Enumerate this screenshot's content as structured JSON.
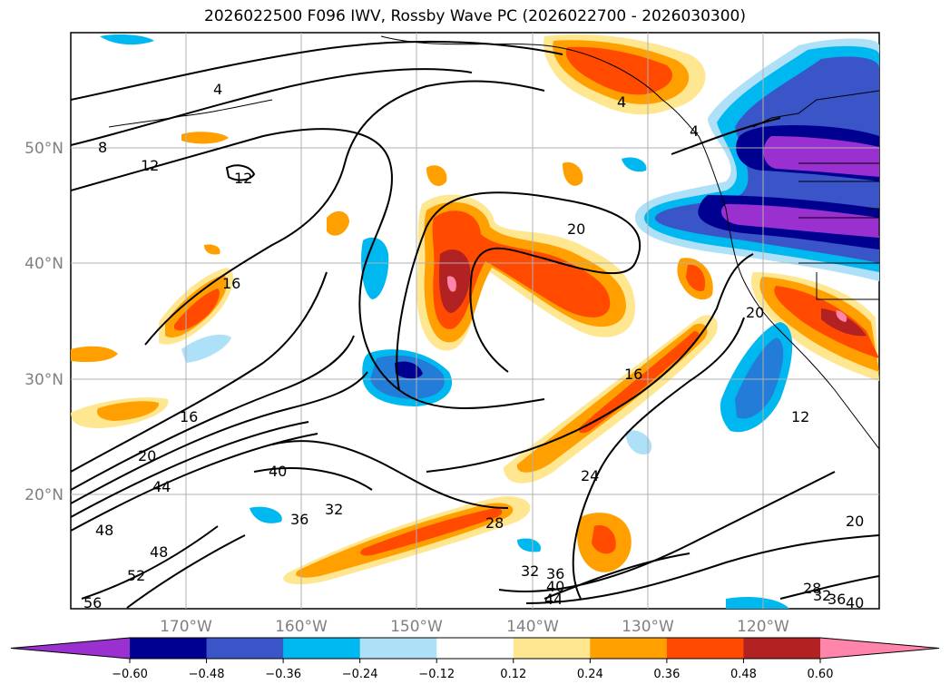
{
  "title": "2026022500 F096 IWV, Rossby Wave PC (2026022700 - 2026030300)",
  "lat_labels": [
    "50°N",
    "40°N",
    "30°N",
    "20°N"
  ],
  "lon_labels": [
    "170°W",
    "160°W",
    "150°W",
    "140°W",
    "130°W",
    "120°W"
  ],
  "contour_labels": [
    "4",
    "8",
    "12",
    "12",
    "16",
    "16",
    "16",
    "20",
    "20",
    "20",
    "24",
    "28",
    "28",
    "32",
    "32",
    "32",
    "36",
    "36",
    "36",
    "40",
    "40",
    "40",
    "44",
    "44",
    "48",
    "48",
    "52",
    "56",
    "4",
    "4",
    "12",
    "20"
  ],
  "colorbar": {
    "ticks": [
      "−0.60",
      "−0.48",
      "−0.36",
      "−0.24",
      "−0.12",
      "0.12",
      "0.24",
      "0.36",
      "0.48",
      "0.60"
    ],
    "colors": [
      "#9b30d0",
      "#000090",
      "#3a55c8",
      "#00b8f0",
      "#aee0f8",
      "#ffffff",
      "#ffe690",
      "#ffa000",
      "#ff4a00",
      "#b22222",
      "#ff85aa"
    ]
  }
}
